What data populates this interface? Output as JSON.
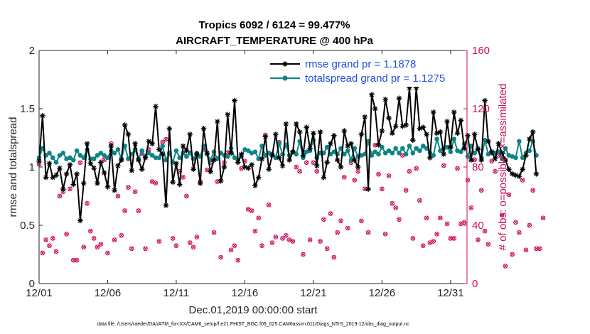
{
  "chart_data": {
    "type": "line",
    "title": "Tropics 6092 / 6124 = 99.477%",
    "subtitle": "AIRCRAFT_TEMPERATURE @ 400 hPa",
    "xlabel": "Dec.01,2019 00:00:00 start",
    "ylabel_left": "rmse and totalspread",
    "ylabel_right": "# of obs: o=possible; ×=assimilated",
    "footnote": "data file: /Users/raeder/DAI/ATM_forcXX/CAM6_setup/f.e21.FHIST_BGC.f09_025.CAM6assim.011/Diags_NTrS_2019-12/obs_diag_output.nc",
    "xlim": [
      0,
      31.2
    ],
    "ylim_left": [
      0,
      2
    ],
    "ylim_right": [
      0,
      160
    ],
    "x_ticks": [
      {
        "value": 0,
        "label": "12/01"
      },
      {
        "value": 5,
        "label": "12/06"
      },
      {
        "value": 10,
        "label": "12/11"
      },
      {
        "value": 15,
        "label": "12/16"
      },
      {
        "value": 20,
        "label": "12/21"
      },
      {
        "value": 25,
        "label": "12/26"
      },
      {
        "value": 30,
        "label": "12/31"
      }
    ],
    "y_ticks_left": [
      "0",
      "0.5",
      "1",
      "1.5",
      "2"
    ],
    "y_ticks_right": [
      "0",
      "40",
      "80",
      "120",
      "160"
    ],
    "colors": {
      "rmse": "#000000",
      "spread": "#0e8585",
      "obs": "#cc0e5e",
      "legend_text": "#1f4fe0",
      "right_axis": "#cc0e5e"
    },
    "legend": {
      "placement": "top-right",
      "entries": [
        "rmse grand pr = 1.1878",
        "totalspread grand pr = 1.1275"
      ]
    },
    "series": [
      {
        "name": "rmse",
        "x0": 0,
        "dx": 0.25,
        "values": [
          1.05,
          1.44,
          0.91,
          1.03,
          0.91,
          0.93,
          0.99,
          0.81,
          0.94,
          1.02,
          0.85,
          0.94,
          0.54,
          0.86,
          1.2,
          1.03,
          0.99,
          0.86,
          1.04,
          0.95,
          0.83,
          1.18,
          0.8,
          1.01,
          1.06,
          1.36,
          1.28,
          0.97,
          1.2,
          1.06,
          0.98,
          1.08,
          1.22,
          1.2,
          1.52,
          1.15,
          1.11,
          0.67,
          1.33,
          0.87,
          1.03,
          0.85,
          1.18,
          1.14,
          1.28,
          0.98,
          1.11,
          0.86,
          1.33,
          1.12,
          0.96,
          1.06,
          1.39,
          0.88,
          1.0,
          1.45,
          1.12,
          1.57,
          1.04,
          1.11,
          1.0,
          0.99,
          1.02,
          0.84,
          0.91,
          1.07,
          1.26,
          0.98,
          1.1,
          1.28,
          1.08,
          1.01,
          1.37,
          1.06,
          1.13,
          1.37,
          1.3,
          1.1,
          1.34,
          1.16,
          1.29,
          1.01,
          1.3,
          0.91,
          1.04,
          1.2,
          1.27,
          1.06,
          1.0,
          1.31,
          1.18,
          1.2,
          1.06,
          1.0,
          1.28,
          1.43,
          0.81,
          1.62,
          1.5,
          1.19,
          1.31,
          1.58,
          1.42,
          1.29,
          1.35,
          1.59,
          1.35,
          1.36,
          1.68,
          1.23,
          1.68,
          1.33,
          1.34,
          1.28,
          1.08,
          1.47,
          1.29,
          1.3,
          1.11,
          1.39,
          1.17,
          1.47,
          1.29,
          1.4,
          1.16,
          1.27,
          1.06,
          1.28,
          1.15,
          1.06,
          1.57,
          1.22,
          1.13,
          1.07,
          1.2,
          1.12,
          1.06,
          0.98,
          0.94,
          0.93,
          0.92,
          0.98,
          1.1,
          1.24,
          1.3,
          0.94
        ]
      },
      {
        "name": "totalspread",
        "x0": 0,
        "dx": 0.25,
        "values": [
          1.08,
          1.16,
          1.1,
          1.12,
          1.08,
          1.04,
          1.1,
          1.12,
          1.07,
          1.08,
          1.06,
          1.14,
          1.1,
          1.08,
          1.15,
          1.07,
          1.07,
          1.1,
          1.12,
          1.1,
          1.08,
          1.14,
          1.12,
          1.15,
          1.07,
          1.18,
          1.07,
          1.11,
          1.15,
          1.07,
          1.14,
          1.09,
          1.12,
          1.1,
          1.08,
          1.08,
          1.18,
          1.06,
          1.12,
          1.04,
          1.14,
          1.08,
          1.12,
          1.09,
          1.12,
          1.07,
          1.12,
          1.09,
          1.18,
          1.11,
          1.06,
          1.13,
          1.07,
          1.12,
          1.1,
          1.09,
          1.16,
          1.08,
          1.06,
          1.09,
          1.15,
          1.14,
          1.12,
          1.13,
          1.07,
          1.18,
          1.1,
          1.12,
          1.11,
          1.08,
          1.2,
          1.11,
          1.19,
          1.1,
          1.13,
          1.11,
          1.22,
          1.08,
          1.13,
          1.14,
          1.23,
          1.08,
          1.12,
          1.12,
          1.17,
          1.11,
          1.13,
          1.11,
          1.16,
          1.11,
          1.14,
          1.06,
          1.16,
          1.09,
          1.1,
          1.11,
          1.22,
          1.1,
          1.13,
          1.11,
          1.17,
          1.12,
          1.14,
          1.12,
          1.16,
          1.12,
          1.16,
          1.11,
          1.18,
          1.12,
          1.16,
          1.14,
          1.18,
          1.16,
          1.12,
          1.1,
          1.24,
          1.14,
          1.16,
          1.17,
          1.13,
          1.24,
          1.14,
          1.13,
          1.2,
          1.09,
          1.18,
          1.12,
          1.16,
          1.08,
          1.23,
          1.11,
          1.12,
          1.12,
          1.13,
          1.07,
          1.16,
          1.1,
          1.09,
          1.08,
          1.22,
          1.08,
          1.12,
          1.14,
          1.22,
          1.1
        ]
      },
      {
        "name": "obs_possible",
        "x0": 0,
        "dx": 0.25,
        "values": [
          82,
          21,
          30,
          26,
          31,
          22,
          60,
          63,
          34,
          65,
          16,
          16,
          83,
          25,
          55,
          36,
          31,
          25,
          27,
          85,
          21,
          96,
          30,
          60,
          33,
          50,
          66,
          24,
          63,
          50,
          89,
          24,
          92,
          70,
          69,
          29,
          97,
          99,
          89,
          31,
          26,
          77,
          73,
          60,
          28,
          25,
          32,
          70,
          92,
          78,
          83,
          35,
          70,
          18,
          83,
          90,
          23,
          26,
          16,
          79,
          84,
          51,
          50,
          36,
          45,
          26,
          102,
          54,
          28,
          32,
          97,
          31,
          33,
          30,
          29,
          80,
          77,
          20,
          83,
          30,
          83,
          77,
          29,
          44,
          24,
          48,
          18,
          35,
          43,
          73,
          38,
          83,
          71,
          77,
          43,
          65,
          35,
          89,
          95,
          75,
          65,
          34,
          74,
          55,
          52,
          44,
          88,
          64,
          77,
          31,
          79,
          57,
          26,
          45,
          28,
          29,
          34,
          45,
          81,
          41,
          31,
          31,
          79,
          41,
          42,
          71,
          52,
          85,
          30,
          64,
          36,
          27,
          84,
          77,
          88,
          47,
          12,
          61,
          20,
          42,
          35,
          71,
          23,
          40,
          64,
          24,
          24,
          45
        ]
      }
    ]
  }
}
